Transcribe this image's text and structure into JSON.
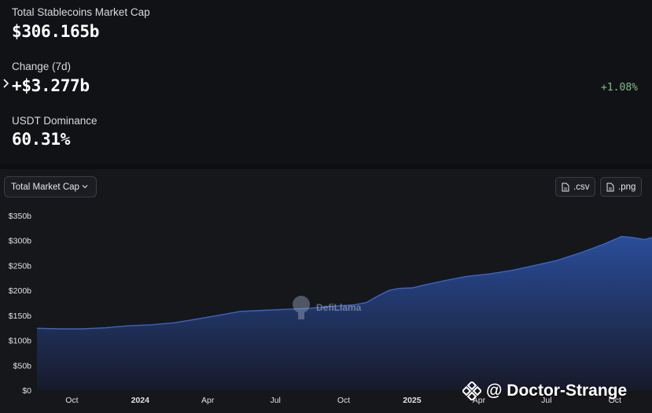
{
  "stats": {
    "total_label": "Total Stablecoins Market Cap",
    "total_value": "$306.165b",
    "change_label": "Change (7d)",
    "change_value": "+$3.277b",
    "change_pct": "+1.08%",
    "dominance_label": "USDT Dominance",
    "dominance_value": "60.31%"
  },
  "controls": {
    "dropdown_label": "Total Market Cap",
    "csv_label": ".csv",
    "png_label": ".png"
  },
  "brand": {
    "name": "DefiLlama"
  },
  "watermark": {
    "text": "@ Doctor-Strange"
  },
  "colors": {
    "area_top": "#2a4d9a",
    "area_bottom": "#171a2a",
    "line": "#3b64c4",
    "positive": "#7fbf86"
  },
  "chart_data": {
    "type": "area",
    "title": "",
    "xlabel": "",
    "ylabel": "",
    "ylim": [
      0,
      350
    ],
    "yticks": [
      0,
      50,
      100,
      150,
      200,
      250,
      300,
      350
    ],
    "ytick_labels": [
      "$0",
      "$50b",
      "$100b",
      "$150b",
      "$200b",
      "$250b",
      "$300b",
      "$350b"
    ],
    "xlim": [
      "2023-08-15",
      "2025-11-20"
    ],
    "xticks": [
      {
        "date": "2023-10-01",
        "label": "Oct",
        "bold": false
      },
      {
        "date": "2024-01-01",
        "label": "2024",
        "bold": true
      },
      {
        "date": "2024-04-01",
        "label": "Apr",
        "bold": false
      },
      {
        "date": "2024-07-01",
        "label": "Jul",
        "bold": false
      },
      {
        "date": "2024-10-01",
        "label": "Oct",
        "bold": false
      },
      {
        "date": "2025-01-01",
        "label": "2025",
        "bold": true
      },
      {
        "date": "2025-04-01",
        "label": "Apr",
        "bold": false
      },
      {
        "date": "2025-07-01",
        "label": "Jul",
        "bold": false
      },
      {
        "date": "2025-10-01",
        "label": "Oct",
        "bold": false
      }
    ],
    "series": [
      {
        "points": [
          [
            "2023-08-15",
            124
          ],
          [
            "2023-09-15",
            123
          ],
          [
            "2023-10-15",
            123
          ],
          [
            "2023-11-15",
            125
          ],
          [
            "2023-12-15",
            129
          ],
          [
            "2024-01-15",
            131
          ],
          [
            "2024-02-15",
            135
          ],
          [
            "2024-03-15",
            142
          ],
          [
            "2024-04-15",
            150
          ],
          [
            "2024-05-15",
            158
          ],
          [
            "2024-06-15",
            160
          ],
          [
            "2024-07-15",
            162
          ],
          [
            "2024-08-15",
            164
          ],
          [
            "2024-09-15",
            168
          ],
          [
            "2024-10-15",
            171
          ],
          [
            "2024-11-01",
            176
          ],
          [
            "2024-11-15",
            188
          ],
          [
            "2024-12-01",
            200
          ],
          [
            "2024-12-15",
            204
          ],
          [
            "2025-01-01",
            205
          ],
          [
            "2025-01-15",
            210
          ],
          [
            "2025-02-15",
            220
          ],
          [
            "2025-03-15",
            228
          ],
          [
            "2025-04-15",
            233
          ],
          [
            "2025-05-15",
            240
          ],
          [
            "2025-06-15",
            250
          ],
          [
            "2025-07-15",
            260
          ],
          [
            "2025-08-15",
            275
          ],
          [
            "2025-09-15",
            292
          ],
          [
            "2025-10-10",
            308
          ],
          [
            "2025-10-25",
            306
          ],
          [
            "2025-11-10",
            302
          ],
          [
            "2025-11-20",
            306
          ]
        ]
      }
    ]
  }
}
